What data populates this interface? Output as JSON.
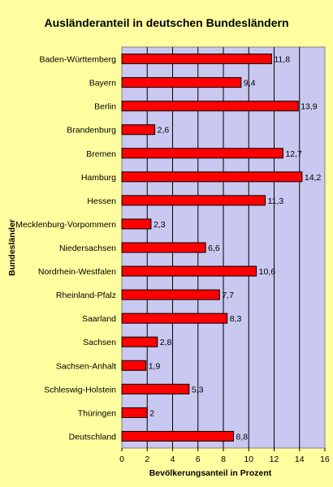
{
  "chart_data": {
    "type": "bar",
    "orientation": "horizontal",
    "title": "Ausländeranteil in deutschen Bundesländern",
    "xlabel": "Bevölkerungsanteil in Prozent",
    "ylabel": "Bundesländer",
    "xlim": [
      0,
      16
    ],
    "xticks": [
      0,
      2,
      4,
      6,
      8,
      10,
      12,
      14,
      16
    ],
    "grid": "vertical",
    "categories": [
      "Baden-Württemberg",
      "Bayern",
      "Berlin",
      "Brandenburg",
      "Bremen",
      "Hamburg",
      "Hessen",
      "Mecklenburg-Vorpommern",
      "Niedersachsen",
      "Nordrhein-Westfalen",
      "Rheinland-Pfalz",
      "Saarland",
      "Sachsen",
      "Sachsen-Anhalt",
      "Schleswig-Holstein",
      "Thüringen",
      "Deutschland"
    ],
    "values": [
      11.8,
      9.4,
      13.9,
      2.6,
      12.7,
      14.2,
      11.3,
      2.3,
      6.6,
      10.6,
      7.7,
      8.3,
      2.8,
      1.9,
      5.3,
      2,
      8.8
    ],
    "data_labels": [
      "11,8",
      "9,4",
      "13,9",
      "2,6",
      "12,7",
      "14,2",
      "11,3",
      "2,3",
      "6,6",
      "10,6",
      "7,7",
      "8,3",
      "2,8",
      "1,9",
      "5,3",
      "2",
      "8,8"
    ],
    "colors": {
      "background": "#FFFFA0",
      "plot_area": "#C8C8F0",
      "bar": "#FF0000",
      "bar_edge": "#000000",
      "grid": "#000000"
    }
  }
}
